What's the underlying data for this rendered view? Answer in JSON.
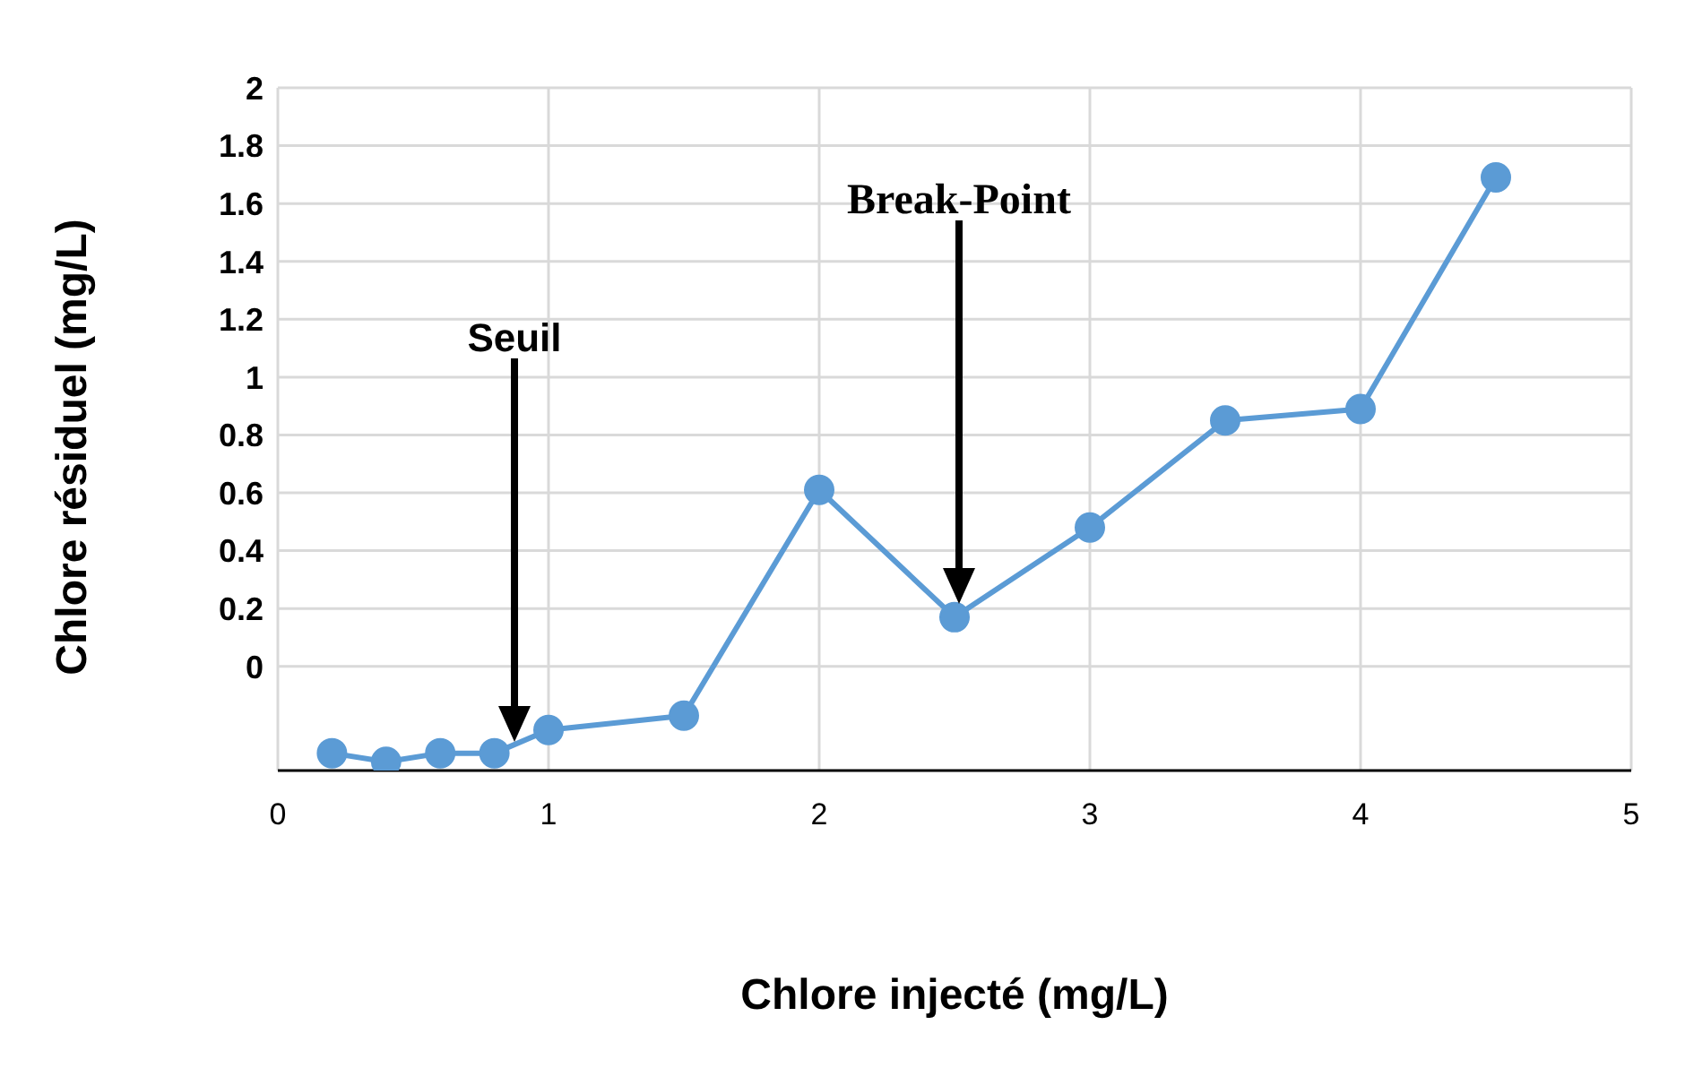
{
  "chart_data": {
    "type": "line",
    "xlabel": "Chlore injecté (mg/L)",
    "ylabel": "Chlore résiduel (mg/L)",
    "x": [
      0.2,
      0.4,
      0.6,
      0.8,
      1,
      1.5,
      2,
      2.5,
      3,
      3.5,
      4,
      4.5
    ],
    "series": [
      {
        "color": "#5b9bd5",
        "values": [
          -0.3,
          -0.33,
          -0.3,
          -0.3,
          -0.22,
          -0.17,
          0.61,
          0.17,
          0.48,
          0.85,
          0.89,
          1.69
        ]
      }
    ],
    "xlim": [
      0,
      5
    ],
    "xticks": [
      0,
      1,
      2,
      3,
      4,
      5
    ],
    "ylim": [
      -0.36,
      2
    ],
    "yticks": [
      0,
      0.2,
      0.4,
      0.6,
      0.8,
      1,
      1.2,
      1.4,
      1.6,
      1.8,
      2
    ],
    "grid": true,
    "marker": "circle",
    "line_style": "solid",
    "annotations": [
      "Seuil",
      "Break-Point"
    ]
  }
}
